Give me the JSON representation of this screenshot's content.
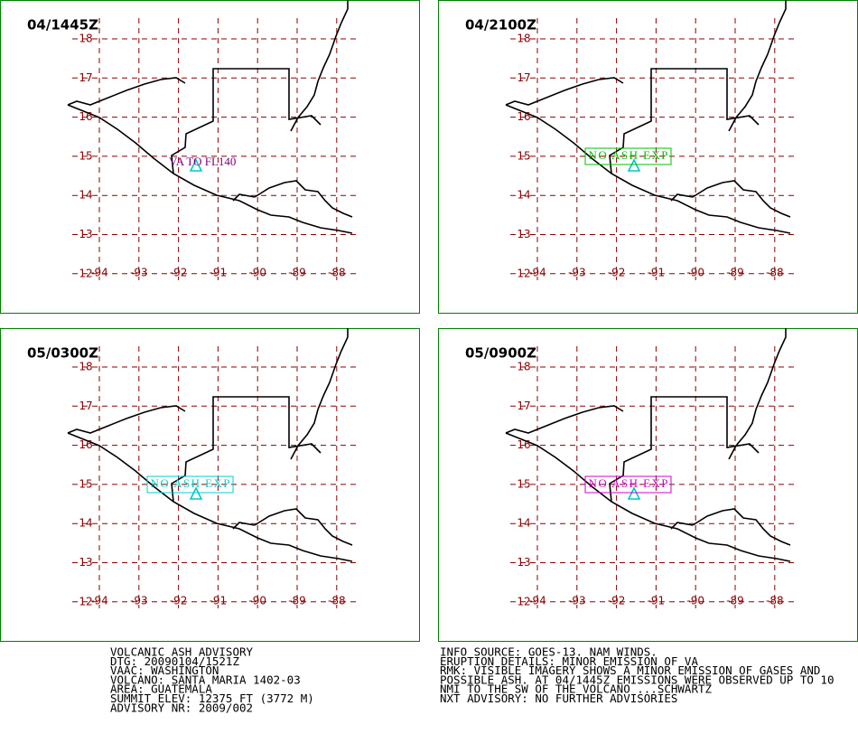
{
  "panels": [
    {
      "time": "04/1445Z",
      "label": "VA TO FL140"
    },
    {
      "time": "04/2100Z",
      "label": "NO ASH EXP"
    },
    {
      "time": "05/0300Z",
      "label": "NO ASH EXP"
    },
    {
      "time": "05/0900Z",
      "label": "NO ASH EXP"
    }
  ],
  "map": {
    "lat_labels": [
      "18",
      "17",
      "16",
      "15",
      "14",
      "13",
      "12"
    ],
    "lon_labels": [
      "-94",
      "-93",
      "-92",
      "-91",
      "-90",
      "-89",
      "-88"
    ]
  },
  "advisory": {
    "left": [
      "VOLCANIC ASH ADVISORY",
      "DTG: 20090104/1521Z",
      "VAAC: WASHINGTON",
      "VOLCANO: SANTA MARIA 1402-03",
      "AREA: GUATEMALA",
      "SUMMIT ELEV: 12375 FT (3772 M)",
      "ADVISORY NR: 2009/002"
    ],
    "right": [
      "INFO SOURCE: GOES-13. NAM WINDS.",
      "ERUPTION DETAILS: MINOR EMISSION OF VA",
      "RMK: VISIBLE IMAGERY SHOWS A MINOR EMISSION OF GASES AND",
      "POSSIBLE ASH.  AT 04/1445Z EMISSIONS WERE OBSERVED UP TO 10",
      "NMI TO THE SW OF THE VOLCANO ...SCHWARTZ",
      "NXT ADVISORY: NO FURTHER ADVISORIES"
    ]
  }
}
